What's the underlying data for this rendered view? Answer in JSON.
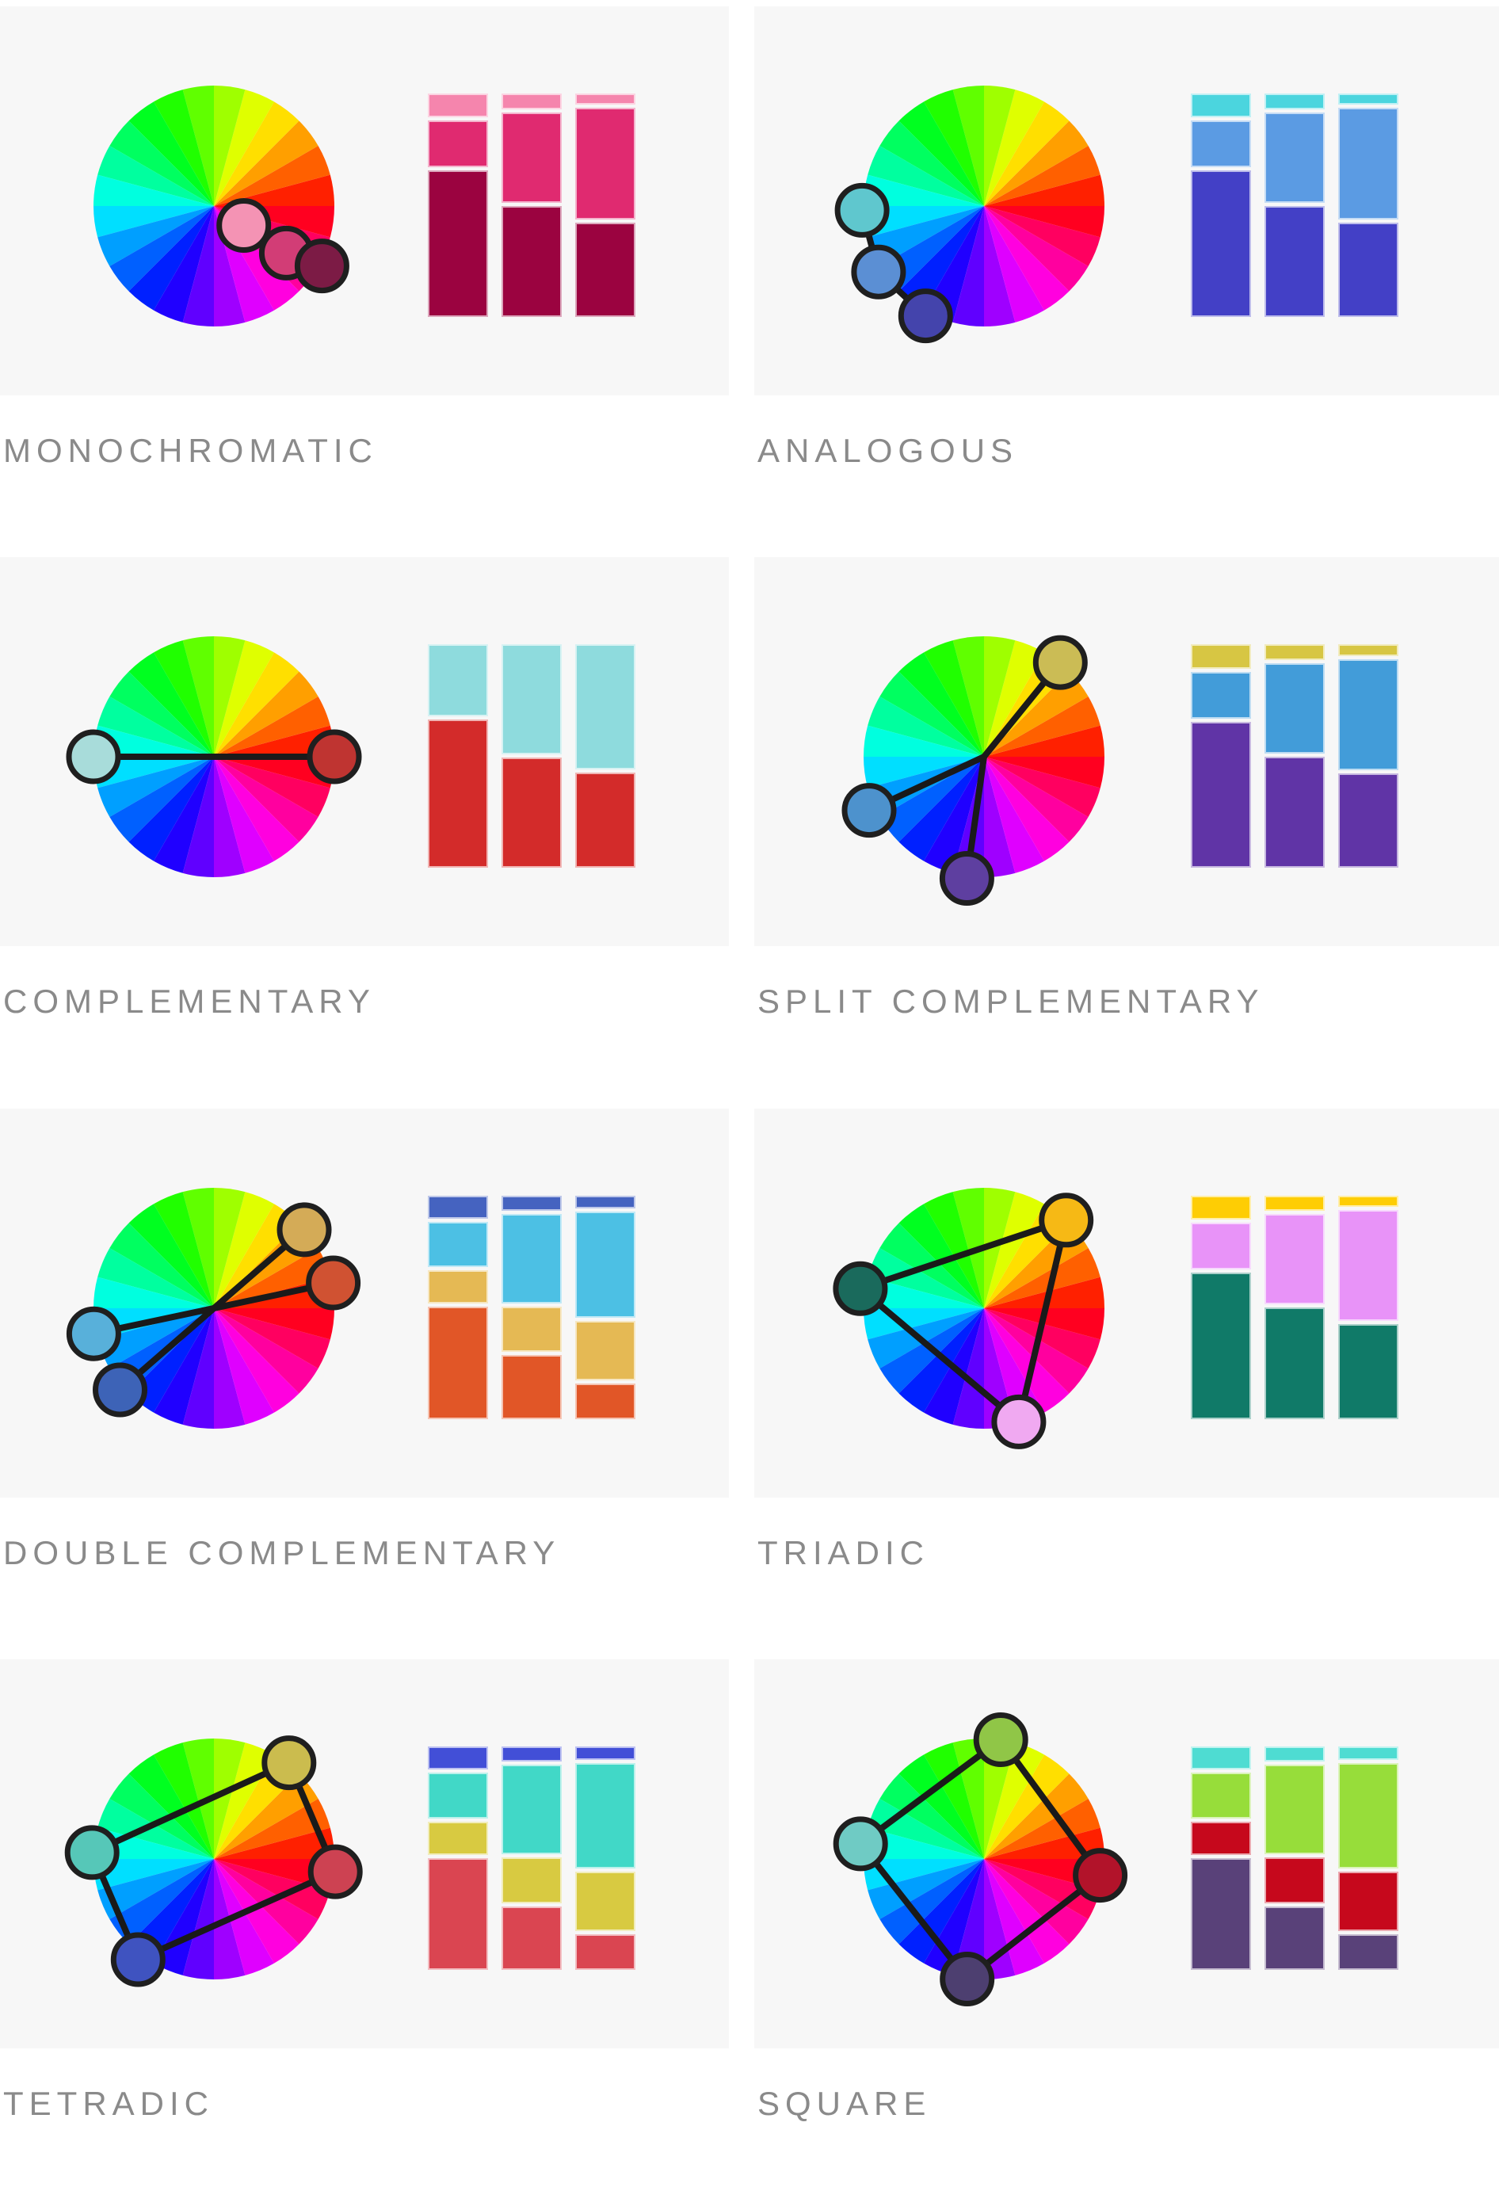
{
  "page": {
    "background": "#ffffff",
    "panel_background": "#f7f7f7",
    "label_color": "#8a8a8a",
    "line_color": "#1a1a1a",
    "dot_border_color": "#1f1f1f",
    "wheel_segment_count": 24
  },
  "panels": [
    {
      "label": "MONOCHROMATIC",
      "dots": [
        {
          "color": "#f493b4",
          "angle": -33,
          "dist": 45
        },
        {
          "color": "#d23d76",
          "angle": -33,
          "dist": 109
        },
        {
          "color": "#7c1b45",
          "angle": -29,
          "dist": 156
        }
      ],
      "connections": {
        "type": "none"
      },
      "bars": {
        "colors": [
          "#f585ad",
          "#e02a70",
          "#9b0340"
        ],
        "columns": [
          [
            10,
            21,
            69
          ],
          [
            6,
            42,
            52
          ],
          [
            4,
            52,
            44
          ]
        ]
      }
    },
    {
      "label": "ANALOGOUS",
      "dots": [
        {
          "color": "#5fc7ce",
          "angle": 182,
          "dist": 154
        },
        {
          "color": "#5b8fd4",
          "angle": 212,
          "dist": 157
        },
        {
          "color": "#4444ac",
          "angle": 242,
          "dist": 157
        }
      ],
      "connections": {
        "type": "chain"
      },
      "bars": {
        "colors": [
          "#4bd5de",
          "#5b9be3",
          "#4340c6"
        ],
        "columns": [
          [
            10,
            21,
            69
          ],
          [
            6,
            42,
            52
          ],
          [
            4,
            52,
            44
          ]
        ]
      }
    },
    {
      "label": "COMPLEMENTARY",
      "dots": [
        {
          "color": "#a8dcda",
          "angle": 180,
          "dist": 152
        },
        {
          "color": "#bf3431",
          "angle": 0,
          "dist": 152
        }
      ],
      "connections": {
        "type": "chain"
      },
      "bars": {
        "colors": [
          "#8edbdd",
          "#d32b2a"
        ],
        "columns": [
          [
            32,
            68
          ],
          [
            50,
            50
          ],
          [
            57,
            43
          ]
        ]
      }
    },
    {
      "label": "SPLIT COMPLEMENTARY",
      "dots": [
        {
          "color": "#cbbc55",
          "angle": 51,
          "dist": 153
        },
        {
          "color": "#4d92cd",
          "angle": 205,
          "dist": 160
        },
        {
          "color": "#5e3fa0",
          "angle": 262,
          "dist": 155
        }
      ],
      "connections": {
        "type": "radial"
      },
      "bars": {
        "colors": [
          "#d7c643",
          "#429cd9",
          "#6034a6"
        ],
        "columns": [
          [
            10,
            21,
            69
          ],
          [
            6,
            42,
            52
          ],
          [
            4,
            52,
            44
          ]
        ]
      }
    },
    {
      "label": "DOUBLE COMPLEMENTARY",
      "dots": [
        {
          "color": "#d4ab57",
          "angle": 41,
          "dist": 151
        },
        {
          "color": "#d05232",
          "angle": 12,
          "dist": 154
        },
        {
          "color": "#58b0da",
          "angle": 192,
          "dist": 155
        },
        {
          "color": "#3d63b7",
          "angle": 221,
          "dist": 157
        }
      ],
      "connections": {
        "type": "pairs",
        "pairs": [
          [
            0,
            3
          ],
          [
            1,
            2
          ]
        ]
      },
      "bars": {
        "colors": [
          "#4563c0",
          "#4cc0e4",
          "#e5b954",
          "#e15627"
        ],
        "columns": [
          [
            10,
            21,
            15,
            54
          ],
          [
            6,
            43,
            21,
            30
          ],
          [
            5,
            51,
            28,
            16
          ]
        ]
      }
    },
    {
      "label": "TRIADIC",
      "dots": [
        {
          "color": "#f6b915",
          "angle": 47,
          "dist": 152
        },
        {
          "color": "#1a6a5c",
          "angle": 171,
          "dist": 158
        },
        {
          "color": "#f0a9f1",
          "angle": 287,
          "dist": 150
        }
      ],
      "connections": {
        "type": "polygon"
      },
      "bars": {
        "colors": [
          "#fecd04",
          "#e893f8",
          "#107a68"
        ],
        "columns": [
          [
            10,
            21,
            69
          ],
          [
            6,
            42,
            52
          ],
          [
            4,
            52,
            44
          ]
        ]
      }
    },
    {
      "label": "TETRADIC",
      "dots": [
        {
          "color": "#cbbc4e",
          "angle": 52,
          "dist": 154
        },
        {
          "color": "#56c7b8",
          "angle": 177,
          "dist": 154
        },
        {
          "color": "#3f53c0",
          "angle": 233,
          "dist": 159
        },
        {
          "color": "#cd4252",
          "angle": 354,
          "dist": 154
        }
      ],
      "connections": {
        "type": "polygon"
      },
      "bars": {
        "colors": [
          "#424fd7",
          "#41d8c7",
          "#d8ca41",
          "#da4551"
        ],
        "columns": [
          [
            10,
            21,
            15,
            54
          ],
          [
            6,
            43,
            21,
            30
          ],
          [
            5,
            51,
            28,
            16
          ]
        ]
      }
    },
    {
      "label": "SQUARE",
      "dots": [
        {
          "color": "#90c647",
          "angle": 82,
          "dist": 152
        },
        {
          "color": "#6fcbc4",
          "angle": 173,
          "dist": 157
        },
        {
          "color": "#4d3f70",
          "angle": 262,
          "dist": 153
        },
        {
          "color": "#b2132a",
          "angle": 352,
          "dist": 148
        }
      ],
      "connections": {
        "type": "polygon"
      },
      "bars": {
        "colors": [
          "#4edcd2",
          "#97dd3a",
          "#c6081c",
          "#594179"
        ],
        "columns": [
          [
            10,
            21,
            15,
            54
          ],
          [
            6,
            43,
            21,
            30
          ],
          [
            5,
            51,
            28,
            16
          ]
        ]
      }
    }
  ]
}
